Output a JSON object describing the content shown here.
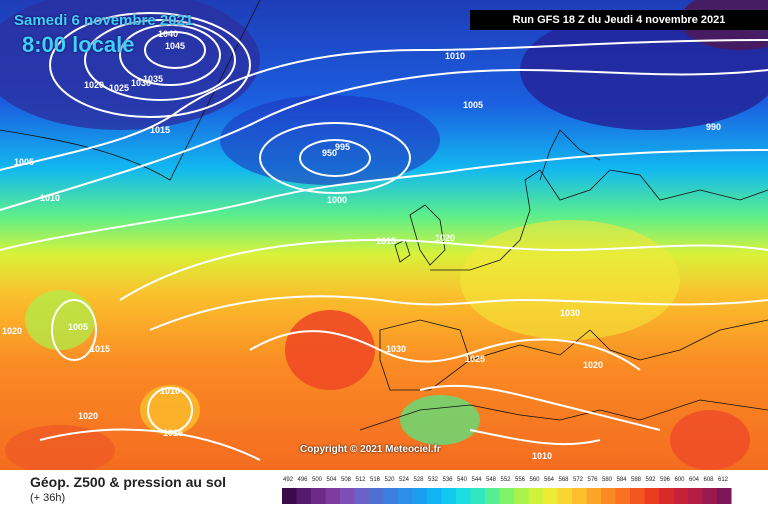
{
  "header": {
    "date": "Samedi 6 novembre 2021",
    "time": "8:00 locale",
    "run": "Run GFS 18 Z du Jeudi 4 novembre 2021"
  },
  "copyright": "Copyright © 2021 Meteociel.fr",
  "legend": {
    "title": "Géop. Z500 & pression au sol",
    "subtitle": "(+ 36h)",
    "scale": [
      "492",
      "496",
      "500",
      "504",
      "508",
      "512",
      "516",
      "520",
      "524",
      "528",
      "532",
      "536",
      "540",
      "544",
      "548",
      "552",
      "556",
      "560",
      "564",
      "568",
      "572",
      "576",
      "580",
      "584",
      "588",
      "592",
      "596",
      "600",
      "604",
      "608",
      "612"
    ],
    "colors": [
      "#3b0a4a",
      "#551a6b",
      "#6d2a86",
      "#7e3a9e",
      "#7d4fb6",
      "#6a62c6",
      "#4f6fd3",
      "#3b7de0",
      "#2c8ee8",
      "#1a9ff0",
      "#10b4f2",
      "#13c9ef",
      "#1cdde0",
      "#30e7bf",
      "#55ee92",
      "#7ff26a",
      "#a9f24c",
      "#d0f23a",
      "#eeea36",
      "#f7d531",
      "#fbbf2c",
      "#fca428",
      "#fb8a24",
      "#f87020",
      "#f2561e",
      "#e93b20",
      "#d92a2a",
      "#c62137",
      "#b21c45",
      "#9a1850",
      "#7d1558"
    ]
  },
  "isobars": [
    "1045",
    "1040",
    "1035",
    "1030",
    "1025",
    "1020",
    "1015",
    "1010",
    "1005",
    "1000",
    "995",
    "990",
    "950",
    "1005",
    "1015",
    "1020",
    "1025",
    "1030",
    "1010",
    "1015",
    "1020",
    "1005",
    "1010",
    "1015",
    "1020",
    "1030",
    "1010",
    "1020"
  ]
}
